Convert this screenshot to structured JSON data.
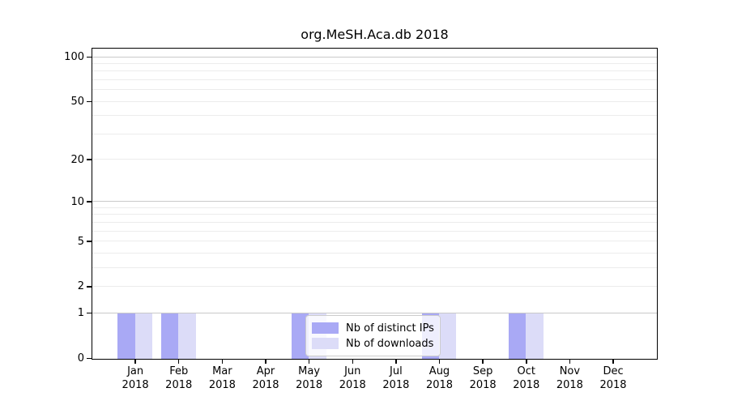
{
  "figure": {
    "background": "#ffffff"
  },
  "title": "org.MeSH.Aca.db 2018",
  "legend": {
    "items": [
      {
        "label": "Nb of distinct IPs",
        "color": "#a9a9f5"
      },
      {
        "label": "Nb of downloads",
        "color": "#dcdcf8"
      }
    ]
  },
  "chart_data": {
    "type": "bar",
    "title": "org.MeSH.Aca.db 2018",
    "categories": [
      "Jan 2018",
      "Feb 2018",
      "Mar 2018",
      "Apr 2018",
      "May 2018",
      "Jun 2018",
      "Jul 2018",
      "Aug 2018",
      "Sep 2018",
      "Oct 2018",
      "Nov 2018",
      "Dec 2018"
    ],
    "series": [
      {
        "name": "Nb of distinct IPs",
        "color": "#a9a9f5",
        "values": [
          1,
          1,
          0,
          0,
          1,
          0,
          0,
          1,
          0,
          1,
          0,
          0
        ]
      },
      {
        "name": "Nb of downloads",
        "color": "#dcdcf8",
        "values": [
          1,
          1,
          0,
          0,
          1,
          0,
          0,
          1,
          0,
          1,
          0,
          0
        ]
      }
    ],
    "xlabel": "",
    "ylabel": "",
    "yscale": "log1p",
    "ylim": [
      0,
      100
    ],
    "y_tick_values": [
      0,
      1,
      2,
      5,
      10,
      20,
      50,
      100
    ],
    "grid_major_values": [
      1,
      10,
      100
    ],
    "grid_minor_values": [
      2,
      3,
      4,
      5,
      6,
      7,
      8,
      9,
      20,
      30,
      40,
      50,
      60,
      70,
      80,
      90
    ],
    "grid": true,
    "legend_position": "inside-lower-center",
    "colors": {
      "grid_major": "#c9c9c9",
      "grid_minor": "#ececec",
      "spine": "#000000",
      "text": "#000000"
    }
  }
}
